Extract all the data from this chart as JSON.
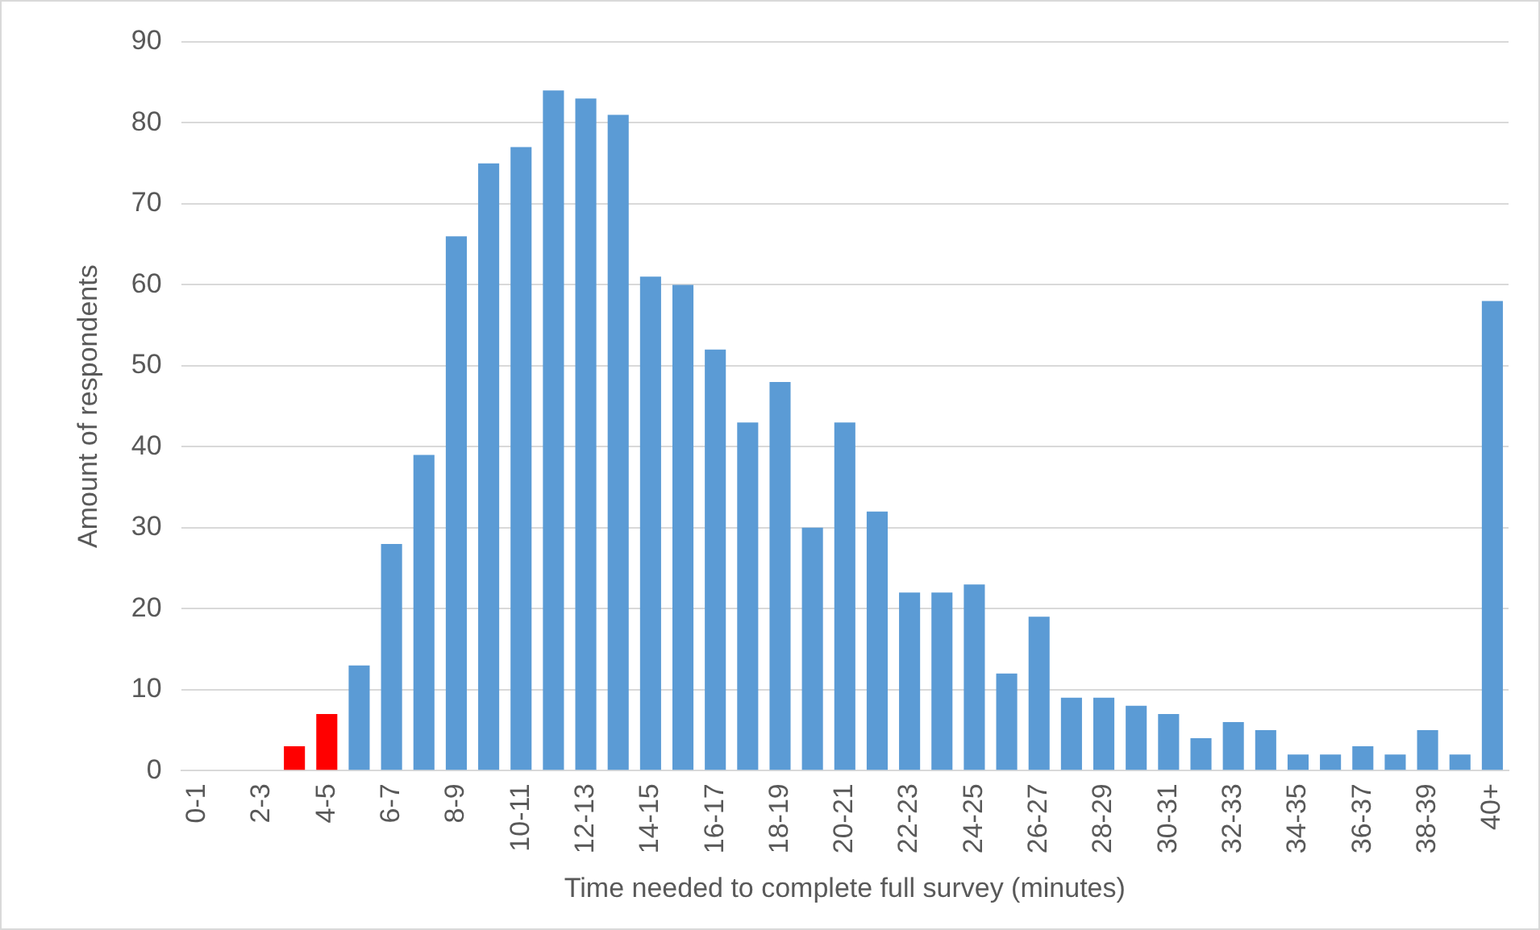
{
  "chart_data": {
    "type": "bar",
    "xlabel": "Time needed to complete full survey (minutes)",
    "ylabel": "Amount of respondents",
    "categories": [
      "0-1",
      null,
      "2-3",
      null,
      "4-5",
      null,
      "6-7",
      null,
      "8-9",
      null,
      "10-11",
      null,
      "12-13",
      null,
      "14-15",
      null,
      "16-17",
      null,
      "18-19",
      null,
      "20-21",
      null,
      "22-23",
      null,
      "24-25",
      null,
      "26-27",
      null,
      "28-29",
      null,
      "30-31",
      null,
      "32-33",
      null,
      "34-35",
      null,
      "36-37",
      null,
      "38-39",
      null,
      "40+"
    ],
    "values": [
      0,
      0,
      0,
      3,
      7,
      13,
      28,
      39,
      66,
      75,
      77,
      84,
      83,
      81,
      61,
      60,
      52,
      43,
      48,
      30,
      43,
      32,
      22,
      22,
      23,
      12,
      19,
      9,
      9,
      8,
      7,
      4,
      6,
      5,
      2,
      2,
      3,
      2,
      5,
      2,
      58
    ],
    "colors": [
      "#5b9bd5",
      "#5b9bd5",
      "#5b9bd5",
      "#ff0000",
      "#ff0000",
      "#5b9bd5",
      "#5b9bd5",
      "#5b9bd5",
      "#5b9bd5",
      "#5b9bd5",
      "#5b9bd5",
      "#5b9bd5",
      "#5b9bd5",
      "#5b9bd5",
      "#5b9bd5",
      "#5b9bd5",
      "#5b9bd5",
      "#5b9bd5",
      "#5b9bd5",
      "#5b9bd5",
      "#5b9bd5",
      "#5b9bd5",
      "#5b9bd5",
      "#5b9bd5",
      "#5b9bd5",
      "#5b9bd5",
      "#5b9bd5",
      "#5b9bd5",
      "#5b9bd5",
      "#5b9bd5",
      "#5b9bd5",
      "#5b9bd5",
      "#5b9bd5",
      "#5b9bd5",
      "#5b9bd5",
      "#5b9bd5",
      "#5b9bd5",
      "#5b9bd5",
      "#5b9bd5",
      "#5b9bd5",
      "#5b9bd5"
    ],
    "ylim": [
      0,
      90
    ],
    "yticks": [
      0,
      10,
      20,
      30,
      40,
      50,
      60,
      70,
      80,
      90
    ],
    "grid": "y",
    "legend": false
  }
}
